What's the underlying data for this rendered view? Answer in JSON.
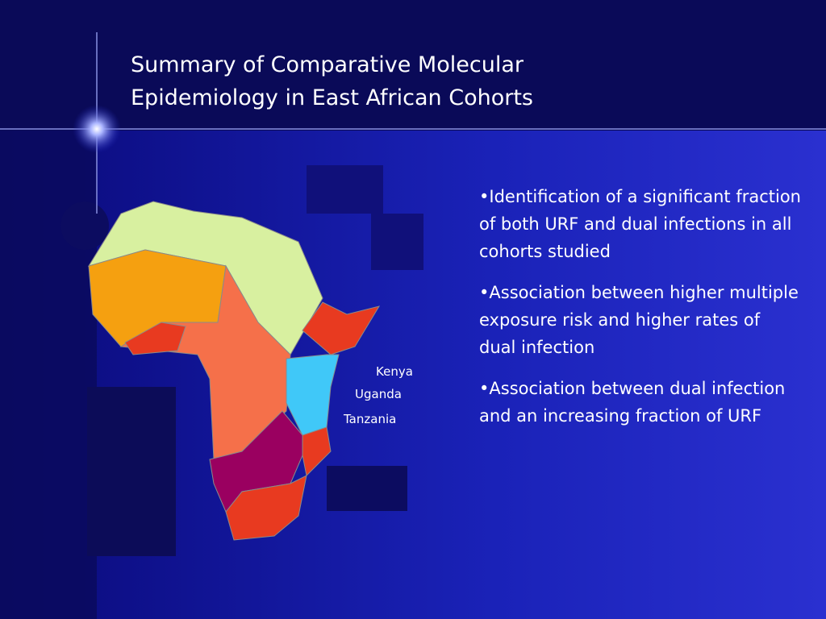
{
  "slide": {
    "title": [
      "Summary of Comparative Molecular",
      "Epidemiology in East African Cohorts"
    ],
    "bullets": [
      "•Identification of a significant fraction of both URF and dual infections in all cohorts studied",
      "•Association between higher multiple exposure risk and higher rates of dual infection",
      "•Association between dual infection and an increasing fraction of URF"
    ],
    "map_labels": [
      "Kenya",
      "Uganda",
      "Tanzania"
    ]
  }
}
